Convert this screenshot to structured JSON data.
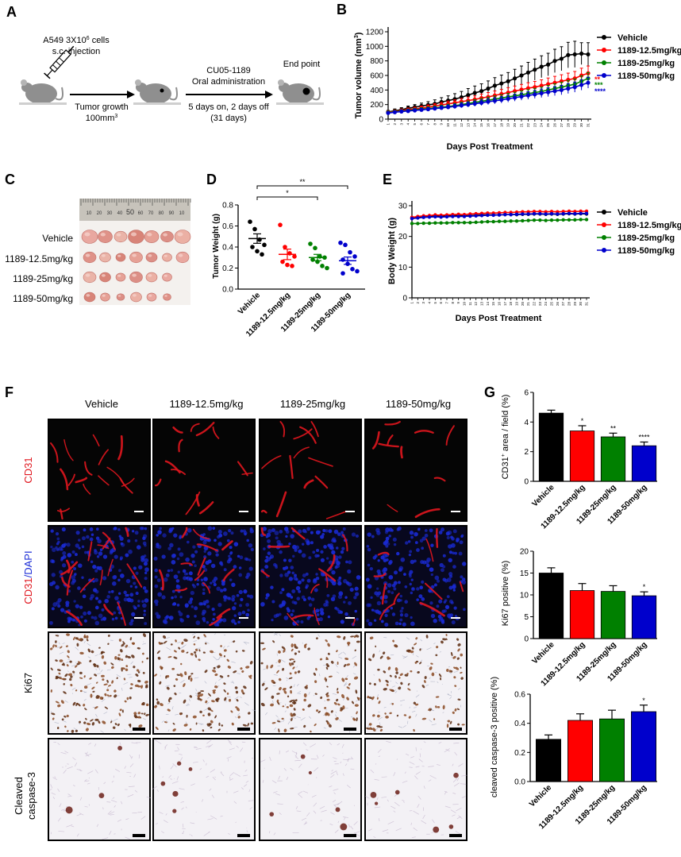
{
  "panel_letters": [
    "A",
    "B",
    "C",
    "D",
    "E",
    "F",
    "G"
  ],
  "panel_a": {
    "cells_text": "A549 3X10",
    "cells_sup": "6",
    "cells_suffix": " cells",
    "injection": "s.c. injection",
    "tumor_growth": "Tumor growth",
    "tumor_size": "100mm",
    "tumor_size_sup": "3",
    "drug": "CU05-1189",
    "route": "Oral administration",
    "schedule": "5 days on, 2 days off",
    "duration": "(31 days)",
    "end_point": "End point"
  },
  "panel_c": {
    "labels": [
      "Vehicle",
      "1189-12.5mg/kg",
      "1189-25mg/kg",
      "1189-50mg/kg"
    ],
    "ruler_marks": [
      "10",
      "20",
      "30",
      "40",
      "50",
      "60",
      "70",
      "80",
      "90",
      "10"
    ]
  },
  "panel_f": {
    "columns": [
      "Vehicle",
      "1189-12.5mg/kg",
      "1189-25mg/kg",
      "1189-50mg/kg"
    ],
    "rows": [
      "CD31",
      "CD31/DAPI",
      "Ki67",
      "Cleaved caspase-3"
    ],
    "row_cd31": "CD31",
    "row_cd31_dapi_a": "CD31",
    "row_cd31_dapi_b": "/DAPI",
    "row_ki67": "Ki67",
    "row_caspase_1": "Cleaved",
    "row_caspase_2": "caspase-3"
  },
  "colors": {
    "vehicle": "#000000",
    "low": "#ff0000",
    "mid": "#008000",
    "high": "#0000cc",
    "cd31": "#e0161e",
    "dapi": "#1a2bd6"
  },
  "chart_data": [
    {
      "id": "B",
      "type": "line",
      "xlabel": "Days Post Treatment",
      "ylabel": "Tumor volume (mm",
      "ylabel_sup": "3",
      "ylabel_end": ")",
      "ylim": [
        0,
        1200
      ],
      "yticks": [
        0,
        200,
        400,
        600,
        800,
        1000,
        1200
      ],
      "x": [
        1,
        2,
        3,
        4,
        5,
        6,
        7,
        8,
        9,
        10,
        11,
        12,
        13,
        14,
        15,
        16,
        17,
        18,
        19,
        20,
        21,
        22,
        23,
        24,
        25,
        26,
        27,
        28,
        29,
        30,
        31
      ],
      "legend_position": "right",
      "series": [
        {
          "name": "Vehicle",
          "color": "#000000",
          "values": [
            100,
            115,
            130,
            150,
            165,
            180,
            195,
            210,
            235,
            255,
            275,
            300,
            330,
            360,
            385,
            420,
            460,
            490,
            520,
            560,
            600,
            640,
            680,
            720,
            750,
            800,
            830,
            880,
            890,
            900,
            890
          ],
          "errors": [
            20,
            25,
            28,
            30,
            35,
            40,
            45,
            55,
            60,
            65,
            75,
            80,
            90,
            95,
            100,
            105,
            110,
            115,
            120,
            125,
            130,
            140,
            145,
            150,
            155,
            160,
            165,
            175,
            180,
            150,
            160
          ]
        },
        {
          "name": "1189-12.5mg/kg",
          "color": "#ff0000",
          "annotation": "**",
          "values": [
            95,
            105,
            118,
            130,
            140,
            152,
            165,
            180,
            195,
            210,
            225,
            240,
            255,
            270,
            290,
            305,
            325,
            345,
            365,
            385,
            405,
            425,
            440,
            460,
            480,
            500,
            520,
            540,
            560,
            600,
            630
          ],
          "errors": [
            15,
            18,
            20,
            22,
            25,
            28,
            30,
            32,
            35,
            38,
            40,
            45,
            48,
            50,
            55,
            60,
            62,
            65,
            68,
            70,
            72,
            75,
            78,
            80,
            85,
            88,
            90,
            92,
            95,
            100,
            100
          ]
        },
        {
          "name": "1189-25mg/kg",
          "color": "#008000",
          "annotation": "***",
          "values": [
            90,
            100,
            110,
            118,
            128,
            136,
            145,
            155,
            165,
            175,
            185,
            200,
            215,
            230,
            245,
            260,
            275,
            290,
            305,
            320,
            335,
            350,
            365,
            380,
            400,
            420,
            440,
            460,
            480,
            520,
            560
          ],
          "errors": [
            12,
            14,
            16,
            18,
            20,
            22,
            24,
            26,
            28,
            30,
            32,
            34,
            36,
            38,
            40,
            42,
            44,
            46,
            48,
            50,
            52,
            55,
            58,
            60,
            62,
            65,
            68,
            70,
            72,
            75,
            80
          ]
        },
        {
          "name": "1189-50mg/kg",
          "color": "#0000cc",
          "annotation": "****",
          "values": [
            85,
            95,
            105,
            112,
            120,
            128,
            136,
            145,
            155,
            165,
            175,
            188,
            200,
            212,
            225,
            240,
            252,
            265,
            280,
            295,
            310,
            325,
            340,
            355,
            370,
            385,
            400,
            420,
            440,
            470,
            500
          ],
          "errors": [
            12,
            14,
            15,
            16,
            18,
            20,
            22,
            24,
            26,
            28,
            30,
            32,
            34,
            36,
            38,
            40,
            42,
            44,
            46,
            48,
            50,
            52,
            55,
            58,
            60,
            62,
            65,
            68,
            70,
            72,
            75
          ]
        }
      ]
    },
    {
      "id": "D",
      "type": "scatter",
      "ylabel": "Tumor Weight (g)",
      "ylim": [
        0,
        0.8
      ],
      "yticks": [
        0.0,
        0.2,
        0.4,
        0.6,
        0.8
      ],
      "categories": [
        "Vehicle",
        "1189-12.5mg/kg",
        "1189-25mg/kg",
        "1189-50mg/kg"
      ],
      "colors": [
        "#000000",
        "#ff0000",
        "#008000",
        "#0000cc"
      ],
      "points": [
        [
          0.64,
          0.57,
          0.47,
          0.42,
          0.4,
          0.36,
          0.33
        ],
        [
          0.61,
          0.4,
          0.34,
          0.31,
          0.26,
          0.23,
          0.22
        ],
        [
          0.43,
          0.39,
          0.31,
          0.3,
          0.28,
          0.26,
          0.22,
          0.2
        ],
        [
          0.44,
          0.42,
          0.35,
          0.31,
          0.28,
          0.24,
          0.19,
          0.17,
          0.15
        ]
      ],
      "means": [
        0.48,
        0.33,
        0.3,
        0.27
      ],
      "sems": [
        0.045,
        0.05,
        0.03,
        0.035
      ],
      "brackets": [
        {
          "from": 0,
          "to": 3,
          "label": "**"
        },
        {
          "from": 0,
          "to": 2,
          "label": "*"
        }
      ]
    },
    {
      "id": "E",
      "type": "line",
      "xlabel": "Days Post Treatment",
      "ylabel": "Body Weight (g)",
      "ylim": [
        0,
        30
      ],
      "yticks": [
        0,
        10,
        20,
        30
      ],
      "x": [
        1,
        2,
        3,
        4,
        5,
        6,
        7,
        8,
        9,
        10,
        11,
        12,
        13,
        14,
        15,
        16,
        17,
        18,
        19,
        20,
        21,
        22,
        23,
        24,
        25,
        26,
        27,
        28,
        29,
        30,
        31
      ],
      "legend_position": "right",
      "series": [
        {
          "name": "Vehicle",
          "color": "#000000",
          "values": [
            26.0,
            26.3,
            26.5,
            26.6,
            26.7,
            26.6,
            26.7,
            26.8,
            26.8,
            26.7,
            26.8,
            26.9,
            27.0,
            27.0,
            27.0,
            27.0,
            27.1,
            27.1,
            27.1,
            27.2,
            27.2,
            27.3,
            27.3,
            27.2,
            27.3,
            27.2,
            27.3,
            27.4,
            27.3,
            27.4,
            27.3
          ]
        },
        {
          "name": "1189-12.5mg/kg",
          "color": "#ff0000",
          "values": [
            26.2,
            26.5,
            26.7,
            26.8,
            27.0,
            26.9,
            27.0,
            27.1,
            27.2,
            27.1,
            27.3,
            27.4,
            27.5,
            27.6,
            27.6,
            27.7,
            27.8,
            27.8,
            27.9,
            28.0,
            28.0,
            28.1,
            28.1,
            28.0,
            28.1,
            28.0,
            28.1,
            28.2,
            28.1,
            28.2,
            28.2
          ]
        },
        {
          "name": "1189-25mg/kg",
          "color": "#008000",
          "values": [
            24.2,
            24.2,
            24.3,
            24.3,
            24.4,
            24.4,
            24.4,
            24.5,
            24.5,
            24.5,
            24.5,
            24.6,
            24.7,
            24.8,
            24.8,
            24.9,
            24.9,
            25.0,
            25.0,
            25.1,
            25.2,
            25.3,
            25.3,
            25.2,
            25.3,
            25.3,
            25.4,
            25.4,
            25.4,
            25.5,
            25.5
          ]
        },
        {
          "name": "1189-50mg/kg",
          "color": "#0000cc",
          "values": [
            25.8,
            26.0,
            26.2,
            26.3,
            26.4,
            26.3,
            26.4,
            26.5,
            26.5,
            26.5,
            26.6,
            26.7,
            26.8,
            26.9,
            26.9,
            27.0,
            27.1,
            27.1,
            27.2,
            27.3,
            27.3,
            27.4,
            27.4,
            27.3,
            27.4,
            27.3,
            27.4,
            27.5,
            27.4,
            27.5,
            27.5
          ]
        }
      ]
    },
    {
      "id": "G1",
      "type": "bar",
      "ylabel": "CD31",
      "ylabel_sup": "+",
      "ylabel_end": " area / field (%)",
      "ylim": [
        0,
        6
      ],
      "yticks": [
        0,
        2,
        4,
        6
      ],
      "categories": [
        "Vehicle",
        "1189-12.5mg/kg",
        "1189-25mg/kg",
        "1189-50mg/kg"
      ],
      "values": [
        4.6,
        3.4,
        3.0,
        2.4
      ],
      "errors": [
        0.2,
        0.35,
        0.25,
        0.25
      ],
      "annotations": [
        "",
        "*",
        "**",
        "****"
      ],
      "colors": [
        "#000000",
        "#ff0000",
        "#008000",
        "#0000cc"
      ]
    },
    {
      "id": "G2",
      "type": "bar",
      "ylabel": "Ki67 positive (%)",
      "ylim": [
        0,
        20
      ],
      "yticks": [
        0,
        5,
        10,
        15,
        20
      ],
      "categories": [
        "Vehicle",
        "1189-12.5mg/kg",
        "1189-25mg/kg",
        "1189-50mg/kg"
      ],
      "values": [
        15.0,
        11.0,
        10.8,
        9.8
      ],
      "errors": [
        1.2,
        1.6,
        1.3,
        0.9
      ],
      "annotations": [
        "",
        "",
        "",
        "*"
      ],
      "colors": [
        "#000000",
        "#ff0000",
        "#008000",
        "#0000cc"
      ]
    },
    {
      "id": "G3",
      "type": "bar",
      "ylabel": "cleaved caspase-3 positive (%)",
      "ylim": [
        0,
        0.6
      ],
      "yticks": [
        0.0,
        0.2,
        0.4,
        0.6
      ],
      "categories": [
        "Vehicle",
        "1189-12.5mg/kg",
        "1189-25mg/kg",
        "1189-50mg/kg"
      ],
      "values": [
        0.29,
        0.42,
        0.43,
        0.48
      ],
      "errors": [
        0.03,
        0.045,
        0.06,
        0.045
      ],
      "annotations": [
        "",
        "",
        "",
        "*"
      ],
      "colors": [
        "#000000",
        "#ff0000",
        "#008000",
        "#0000cc"
      ]
    }
  ]
}
